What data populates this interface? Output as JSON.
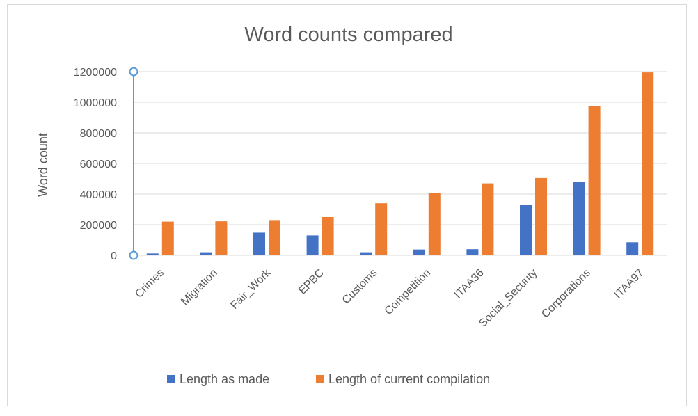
{
  "chart_data": {
    "type": "bar",
    "title": "Word counts compared",
    "xlabel": "",
    "ylabel": "Word count",
    "ylim": [
      0,
      1200000
    ],
    "yticks": [
      0,
      200000,
      400000,
      600000,
      800000,
      1000000,
      1200000
    ],
    "grid": true,
    "legend_position": "bottom",
    "categories": [
      "Crimes",
      "Migration",
      "Fair_Work",
      "EPBC",
      "Customs",
      "Competition",
      "ITAA36",
      "Social_Security",
      "Corporations",
      "ITAA97"
    ],
    "series": [
      {
        "name": "Length as made",
        "color": "#4472c4",
        "values": [
          12000,
          20000,
          148000,
          130000,
          20000,
          38000,
          40000,
          330000,
          478000,
          85000
        ]
      },
      {
        "name": "Length of current compilation",
        "color": "#ed7d31",
        "values": [
          220000,
          222000,
          230000,
          250000,
          340000,
          405000,
          470000,
          505000,
          975000,
          1195000
        ]
      }
    ]
  }
}
